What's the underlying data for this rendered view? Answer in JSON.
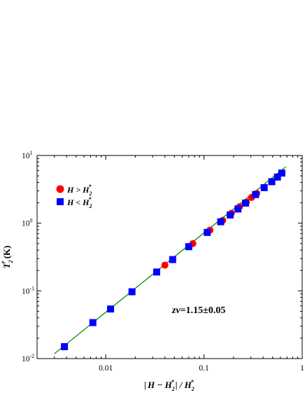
{
  "chart_data": {
    "type": "scatter",
    "xscale": "log",
    "yscale": "log",
    "xlim": [
      0.002,
      1
    ],
    "ylim": [
      0.01,
      10
    ],
    "x_ticks": [
      {
        "value": 0.01,
        "label": "0.01"
      },
      {
        "value": 0.1,
        "label": "0.1"
      },
      {
        "value": 1,
        "label": "1"
      }
    ],
    "y_ticks": [
      {
        "value": 0.01,
        "base": "10",
        "exp": "-2"
      },
      {
        "value": 0.1,
        "base": "10",
        "exp": "-1"
      },
      {
        "value": 1,
        "base": "10",
        "exp": "0"
      },
      {
        "value": 10,
        "base": "10",
        "exp": "1"
      }
    ],
    "xlabel": "|H − H₂*| / H₂*",
    "ylabel": "T₂* (K)",
    "series": [
      {
        "name": "H > H₂*",
        "marker": "circle",
        "color": "#ff0000",
        "points": [
          {
            "x": 0.04,
            "y": 0.24
          },
          {
            "x": 0.077,
            "y": 0.5
          },
          {
            "x": 0.115,
            "y": 0.79
          },
          {
            "x": 0.155,
            "y": 1.1
          },
          {
            "x": 0.19,
            "y": 1.4
          },
          {
            "x": 0.23,
            "y": 1.75
          },
          {
            "x": 0.27,
            "y": 2.05
          },
          {
            "x": 0.305,
            "y": 2.4
          },
          {
            "x": 0.345,
            "y": 2.75
          }
        ]
      },
      {
        "name": "H < H₂*",
        "marker": "square",
        "color": "#0000ff",
        "points": [
          {
            "x": 0.0038,
            "y": 0.015
          },
          {
            "x": 0.0074,
            "y": 0.034
          },
          {
            "x": 0.0112,
            "y": 0.054
          },
          {
            "x": 0.0185,
            "y": 0.097
          },
          {
            "x": 0.033,
            "y": 0.19
          },
          {
            "x": 0.048,
            "y": 0.29
          },
          {
            "x": 0.07,
            "y": 0.45
          },
          {
            "x": 0.108,
            "y": 0.73
          },
          {
            "x": 0.148,
            "y": 1.05
          },
          {
            "x": 0.185,
            "y": 1.32
          },
          {
            "x": 0.222,
            "y": 1.62
          },
          {
            "x": 0.265,
            "y": 1.98
          },
          {
            "x": 0.335,
            "y": 2.65
          },
          {
            "x": 0.41,
            "y": 3.35
          },
          {
            "x": 0.49,
            "y": 4.1
          },
          {
            "x": 0.56,
            "y": 4.8
          },
          {
            "x": 0.62,
            "y": 5.5
          }
        ]
      }
    ],
    "fit_line": {
      "color": "#008000",
      "points": [
        {
          "x": 0.003,
          "y": 0.0118
        },
        {
          "x": 0.68,
          "y": 6.8
        }
      ]
    },
    "legend": {
      "placement": "top-left",
      "entries": [
        {
          "prefix": "H > H",
          "sub": "2",
          "sup": "*"
        },
        {
          "prefix": "H < H",
          "sub": "2",
          "sup": "*"
        }
      ]
    },
    "annotation": "zν=1.15±0.05",
    "grid": false
  }
}
